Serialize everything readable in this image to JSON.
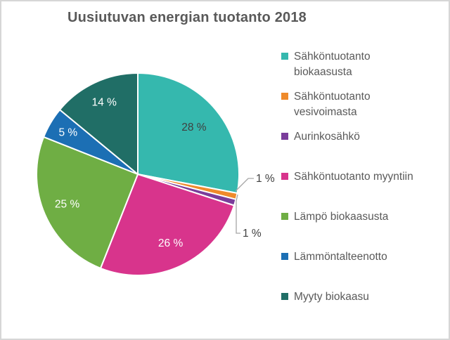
{
  "title": "Uusiutuvan energian tuotanto 2018",
  "chart_data": {
    "type": "pie",
    "title": "Uusiutuvan energian tuotanto 2018",
    "unit": "%",
    "total": 100,
    "start_angle_deg": 0,
    "direction": "clockwise",
    "legend_position": "right",
    "background_color": "#ffffff",
    "title_color": "#595959",
    "legend_text_color": "#595959",
    "leader_line_color": "#a6a6a6",
    "slice_separator_color": "#ffffff",
    "slices": [
      {
        "label": "Sähköntuotanto\nbiokaasusta",
        "legend_label": "Sähköntuotanto biokaasusta",
        "value": 28,
        "display": "28 %",
        "color": "#35b8ae",
        "label_placement": "inside",
        "label_color": "#404040"
      },
      {
        "label": "Sähköntuotanto\nvesivoimasta",
        "legend_label": "Sähköntuotanto vesivoimasta",
        "value": 1,
        "display": "1 %",
        "color": "#ef8a2b",
        "label_placement": "outside",
        "label_color": "#404040"
      },
      {
        "label": "Aurinkosähkö",
        "legend_label": "Aurinkosähkö",
        "value": 1,
        "display": "1 %",
        "color": "#7a3d9b",
        "label_placement": "outside",
        "label_color": "#404040"
      },
      {
        "label": "Sähköntuotanto myyntiin",
        "legend_label": "Sähköntuotanto myyntiin",
        "value": 26,
        "display": "26 %",
        "color": "#d8348c",
        "label_placement": "inside",
        "label_color": "#ffffff"
      },
      {
        "label": "Lämpö biokaasusta",
        "legend_label": "Lämpö biokaasusta",
        "value": 25,
        "display": "25 %",
        "color": "#6fae44",
        "label_placement": "inside",
        "label_color": "#ffffff"
      },
      {
        "label": "Lämmöntalteenotto",
        "legend_label": "Lämmöntalteenotto",
        "value": 5,
        "display": "5 %",
        "color": "#1c6fb4",
        "label_placement": "inside",
        "label_color": "#ffffff"
      },
      {
        "label": "Myyty biokaasu",
        "legend_label": "Myyty biokaasu",
        "value": 14,
        "display": "14 %",
        "color": "#206e66",
        "label_placement": "inside",
        "label_color": "#ffffff"
      }
    ]
  }
}
